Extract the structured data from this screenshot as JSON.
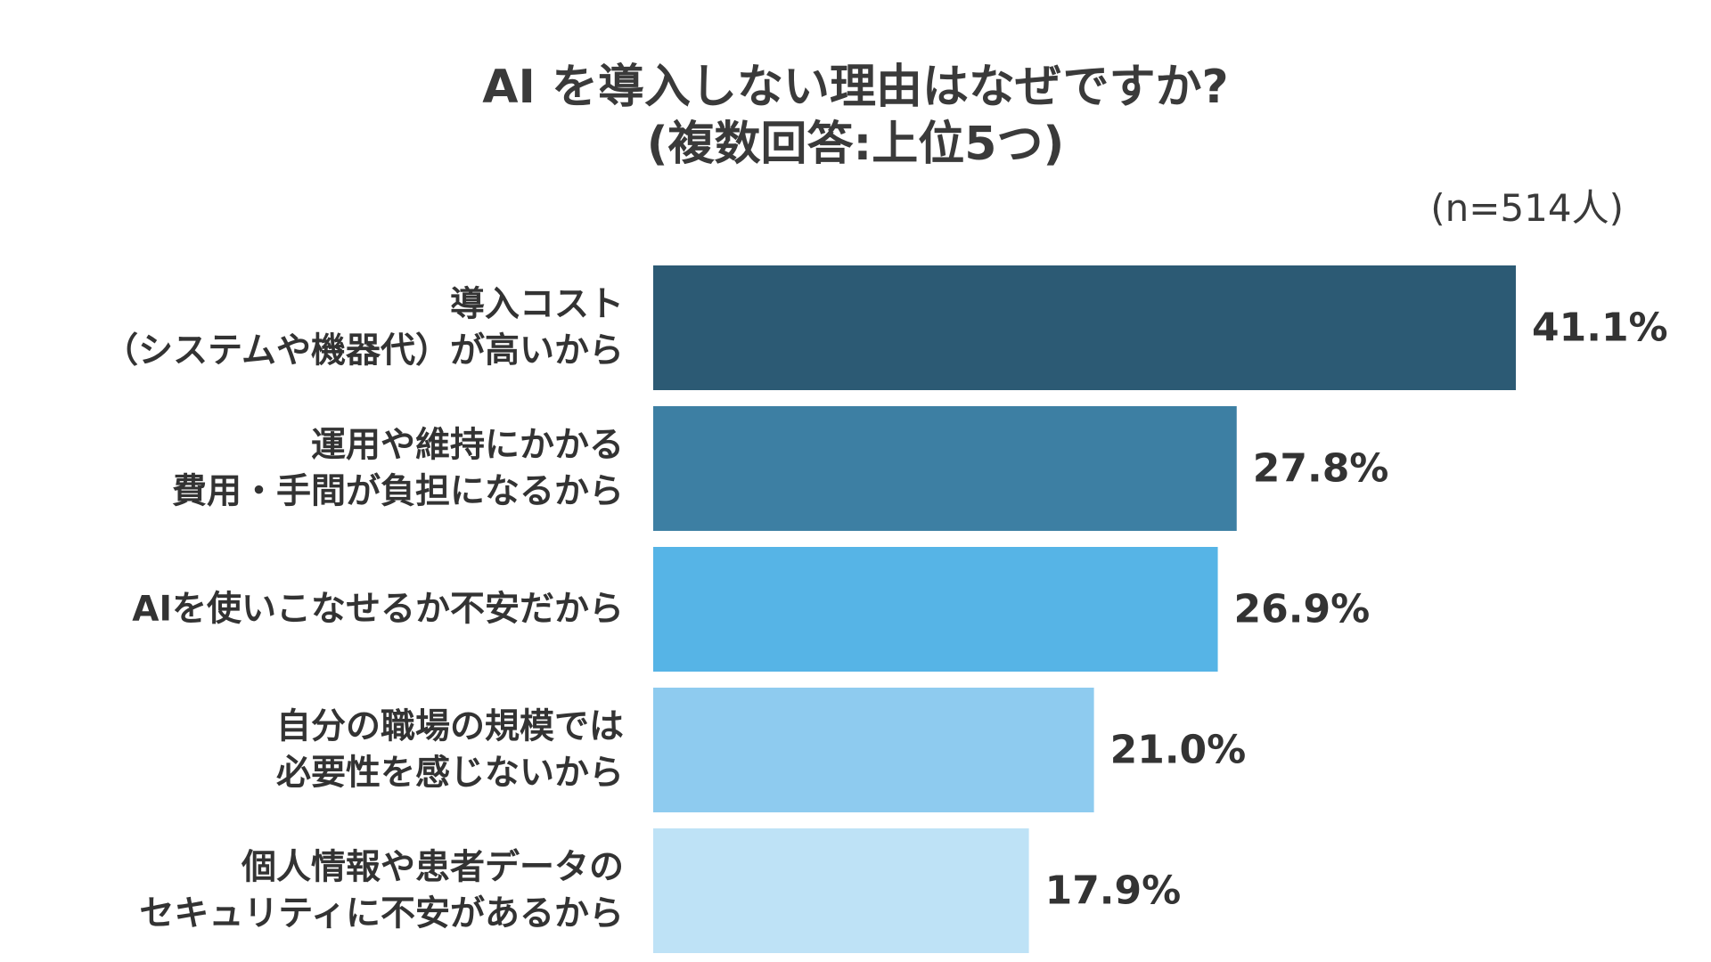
{
  "chart_data": {
    "type": "bar",
    "orientation": "horizontal",
    "title_lines": [
      "AI を導入しない理由はなぜですか?",
      "(複数回答:上位5つ)"
    ],
    "sample_size": "(n=514人)",
    "categories": [
      [
        "導入コスト",
        "（システムや機器代）が高いから"
      ],
      [
        "運用や維持にかかる",
        "費用・手間が負担になるから"
      ],
      [
        "AIを使いこなせるか不安だから"
      ],
      [
        "自分の職場の規模では",
        "必要性を感じないから"
      ],
      [
        "個人情報や患者データの",
        "セキュリティに不安があるから"
      ]
    ],
    "values": [
      41.1,
      27.8,
      26.9,
      21.0,
      17.9
    ],
    "value_labels": [
      "41.1%",
      "27.8%",
      "26.9%",
      "21.0%",
      "17.9%"
    ],
    "colors": [
      "#2c5a74",
      "#3d7fa3",
      "#56b4e6",
      "#8ecbef",
      "#bee2f6"
    ],
    "xlim": [
      0,
      41.1
    ],
    "grid": false,
    "legend": "none"
  }
}
